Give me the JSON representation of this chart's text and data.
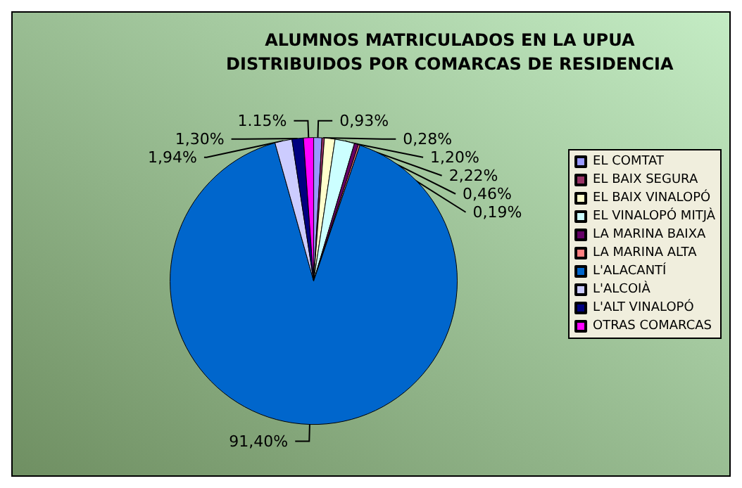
{
  "chart_data": {
    "type": "pie",
    "title": "ALUMNOS MATRICULADOS EN LA UPUA\nDISTRIBUIDOS POR COMARCAS DE RESIDENCIA",
    "categories": [
      "EL COMTAT",
      "EL BAIX SEGURA",
      "EL BAIX VINALOPÓ",
      "EL VINALOPÓ MITJÀ",
      "LA MARINA BAIXA",
      "LA MARINA ALTA",
      "L'ALACANTÍ",
      "L'ALCOIÀ",
      "L'ALT VINALOPÓ",
      "OTRAS COMARCAS"
    ],
    "values": [
      0.93,
      0.28,
      1.2,
      2.22,
      0.46,
      0.19,
      91.4,
      1.94,
      1.3,
      1.15
    ],
    "value_labels": [
      "0,93%",
      "0,28%",
      "1,20%",
      "2,22%",
      "0,46%",
      "0,19%",
      "91,40%",
      "1,94%",
      "1,30%",
      "1.15%"
    ],
    "colors": [
      "#9999ff",
      "#993366",
      "#ffffcc",
      "#ccffff",
      "#660066",
      "#ff8080",
      "#0066cc",
      "#ccccff",
      "#000080",
      "#ff00ff"
    ],
    "legend": "right"
  }
}
